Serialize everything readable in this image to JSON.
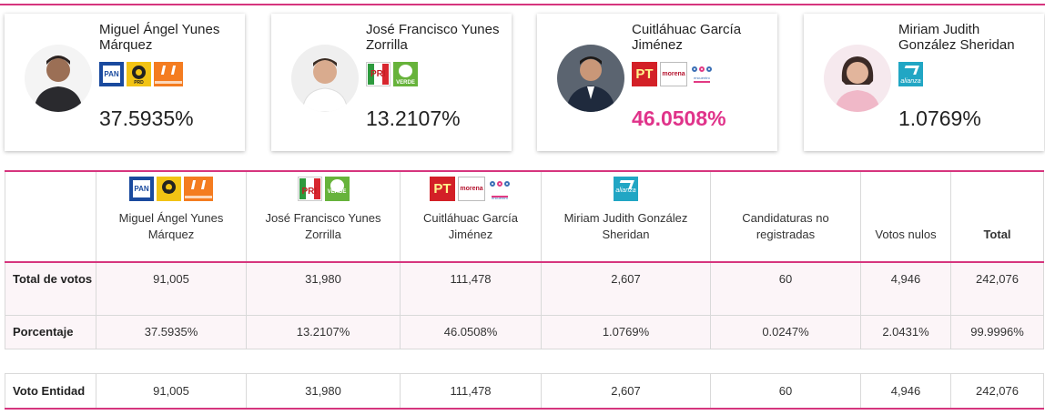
{
  "candidates": [
    {
      "name": "Miguel Ángel Yunes Márquez",
      "percentage": "37.5935%",
      "logos": [
        "PAN",
        "PRD",
        "MC"
      ]
    },
    {
      "name": "José Francisco Yunes Zorrilla",
      "percentage": "13.2107%",
      "logos": [
        "PRI",
        "VERDE"
      ]
    },
    {
      "name": "Cuitláhuac García Jiménez",
      "percentage": "46.0508%",
      "logos": [
        "PT",
        "morena",
        "encuentro social"
      ],
      "winner": true
    },
    {
      "name": "Miriam Judith González Sheridan",
      "percentage": "1.0769%",
      "logos": [
        "alianza"
      ]
    }
  ],
  "logo_text": {
    "pan": "PAN",
    "prd": "PRD",
    "pri": "PRI",
    "verde": "VERDE",
    "pt": "PT",
    "morena": "morena",
    "pes": "encuentro",
    "alianza": "alianza"
  },
  "table": {
    "headers": [
      "Miguel Ángel Yunes Márquez",
      "José Francisco Yunes Zorrilla",
      "Cuitláhuac García Jiménez",
      "Miriam Judith González Sheridan",
      "Candidaturas no registradas",
      "Votos nulos",
      "Total"
    ],
    "rows": [
      {
        "label": "Total de votos",
        "values": [
          "91,005",
          "31,980",
          "111,478",
          "2,607",
          "60",
          "4,946",
          "242,076"
        ]
      },
      {
        "label": "Porcentaje",
        "values": [
          "37.5935%",
          "13.2107%",
          "46.0508%",
          "1.0769%",
          "0.0247%",
          "2.0431%",
          "99.9996%"
        ]
      }
    ]
  },
  "entidad": {
    "label": "Voto Entidad",
    "values": [
      "91,005",
      "31,980",
      "111,478",
      "2,607",
      "60",
      "4,946",
      "242,076"
    ]
  },
  "colors": {
    "accent": "#d6357e",
    "winner": "#e0338a",
    "row_bg": "#fcf5f8"
  },
  "icons": [
    "candidate-photo-icon",
    "pan-logo-icon",
    "prd-logo-icon",
    "mc-logo-icon",
    "pri-logo-icon",
    "verde-logo-icon",
    "pt-logo-icon",
    "morena-logo-icon",
    "pes-logo-icon",
    "alianza-logo-icon"
  ]
}
